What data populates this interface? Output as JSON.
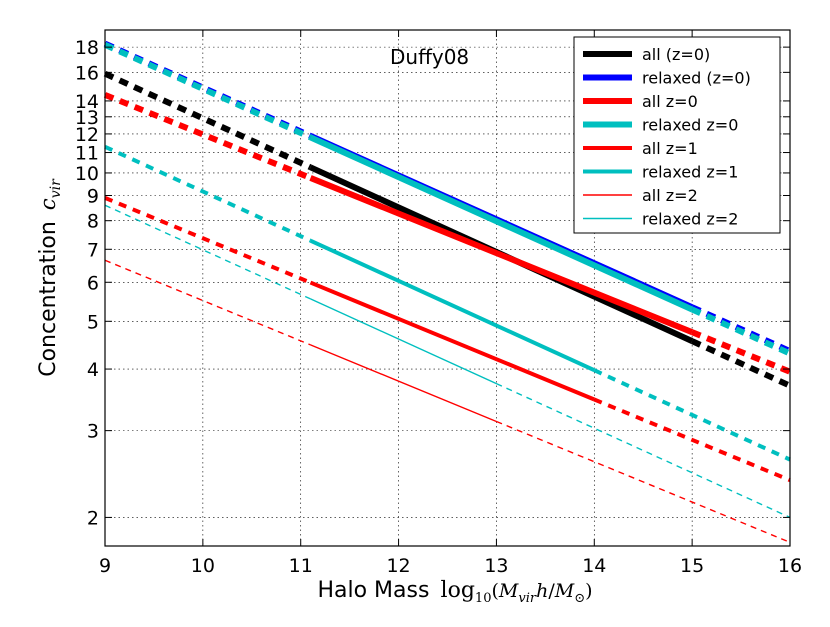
{
  "chart_data": {
    "type": "line",
    "annotation": "Duffy08",
    "xlabel_text": "Halo Mass",
    "xlabel_math": "log10(Mvir h/M⊙)",
    "ylabel_text": "Concentration",
    "ylabel_math": "cvir",
    "xlim": [
      9,
      16
    ],
    "ylim": [
      1.75,
      19.5
    ],
    "yscale": "log",
    "grid": true,
    "legend_position": "top-right",
    "x_ticks": [
      9,
      10,
      11,
      12,
      13,
      14,
      15,
      16
    ],
    "y_ticks": [
      2,
      3,
      4,
      5,
      6,
      7,
      8,
      9,
      10,
      11,
      12,
      13,
      14,
      16,
      18
    ],
    "series": [
      {
        "name": "all (z=0)",
        "color": "#000000",
        "lw": "thick",
        "x": [
          9,
          16
        ],
        "y": [
          15.9,
          3.7
        ],
        "solid_range": [
          11.1,
          15.0
        ]
      },
      {
        "name": "relaxed (z=0)",
        "color": "#0000ff",
        "lw": "thick",
        "x": [
          9,
          16
        ],
        "y": [
          18.3,
          4.35
        ],
        "solid_range": [
          11.1,
          15.0
        ]
      },
      {
        "name": "all z=0",
        "color": "#ff0000",
        "lw": "thick",
        "x": [
          9,
          16
        ],
        "y": [
          14.4,
          3.95
        ],
        "solid_range": [
          11.1,
          15.0
        ]
      },
      {
        "name": "relaxed z=0",
        "color": "#00bfbf",
        "lw": "thick",
        "x": [
          9,
          16
        ],
        "y": [
          18.2,
          4.3
        ],
        "solid_range": [
          11.1,
          15.0
        ]
      },
      {
        "name": "all z=1",
        "color": "#ff0000",
        "lw": "medium",
        "x": [
          9,
          16
        ],
        "y": [
          8.9,
          2.38
        ],
        "solid_range": [
          11.1,
          14.0
        ]
      },
      {
        "name": "relaxed z=1",
        "color": "#00bfbf",
        "lw": "medium",
        "x": [
          9,
          16
        ],
        "y": [
          11.3,
          2.62
        ],
        "solid_range": [
          11.1,
          14.0
        ]
      },
      {
        "name": "all z=2",
        "color": "#ff0000",
        "lw": "thin",
        "x": [
          9,
          16
        ],
        "y": [
          6.65,
          1.78
        ],
        "solid_range": [
          11.1,
          13.0
        ]
      },
      {
        "name": "relaxed z=2",
        "color": "#00bfbf",
        "lw": "thin",
        "x": [
          9,
          16
        ],
        "y": [
          8.6,
          2.0
        ],
        "solid_range": [
          11.1,
          13.0
        ]
      }
    ]
  }
}
